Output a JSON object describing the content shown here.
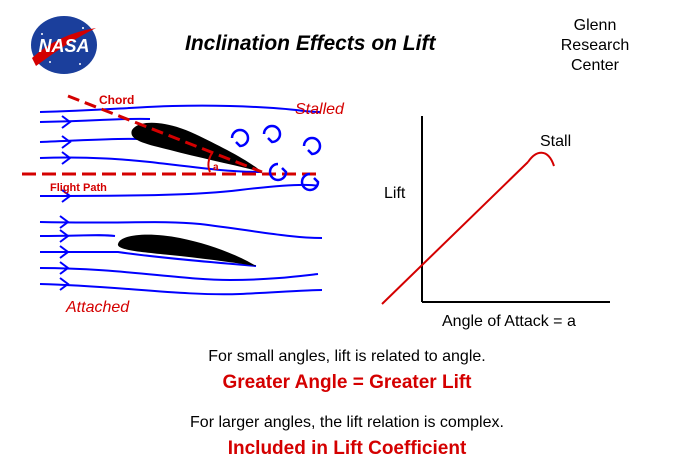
{
  "logo": {
    "text": "NASA",
    "color_blue": "#1b3f9c",
    "color_red": "#d40000"
  },
  "header": {
    "title": "Inclination  Effects  on  Lift",
    "org_lines": [
      "Glenn",
      "Research",
      "Center"
    ]
  },
  "airfoil_diagram": {
    "chord_label": "Chord",
    "stalled_label": "Stalled",
    "angle_label": "a",
    "flight_path_label": "Flight Path",
    "attached_label": "Attached",
    "flow_color": "#0000ff",
    "label_color": "#d40000"
  },
  "lift_graph": {
    "y_label": "Lift",
    "x_label": "Angle  of  Attack = a",
    "stall_label": "Stall",
    "line_color": "#d40000"
  },
  "bottom_text": {
    "line1": "For small angles, lift is related to angle.",
    "line2": "Greater  Angle  =  Greater  Lift",
    "line3": "For larger angles, the lift relation is complex.",
    "line4": "Included  in  Lift  Coefficient"
  }
}
